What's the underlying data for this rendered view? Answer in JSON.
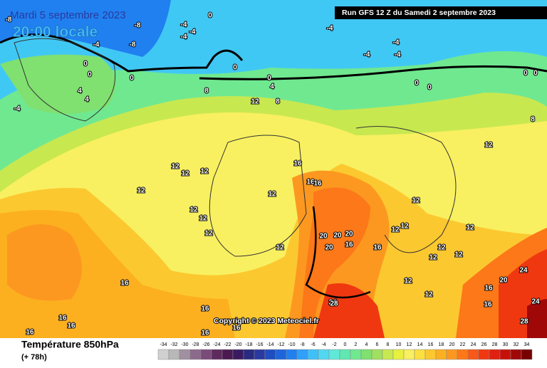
{
  "header": {
    "date": "Mardi 5 septembre 2023",
    "time": "20:00 locale",
    "run": "Run GFS 12 Z du Samedi 2 septembre 2023"
  },
  "copyright": "Copyright © 2023 Meteociel.fr",
  "legend": {
    "title": "Température 850hPa",
    "lead": "(+ 78h)",
    "ticks": [
      -34,
      -32,
      -30,
      -28,
      -26,
      -24,
      -22,
      -20,
      -18,
      -16,
      -14,
      -12,
      -10,
      -8,
      -6,
      -4,
      -2,
      0,
      2,
      4,
      6,
      8,
      10,
      12,
      14,
      16,
      18,
      20,
      22,
      24,
      26,
      28,
      30,
      32,
      34
    ],
    "colors": [
      "#d0d0d0",
      "#b8b8b8",
      "#a090a0",
      "#8c6a8c",
      "#7a4a7a",
      "#5e2a5e",
      "#4a1a50",
      "#3a1a60",
      "#2a2a80",
      "#2a3aa0",
      "#1e4ec0",
      "#1e64dc",
      "#2080f0",
      "#30a0f8",
      "#40c0f8",
      "#50d8f0",
      "#60e8d8",
      "#60e8b0",
      "#70e890",
      "#80e070",
      "#a0e060",
      "#c8e850",
      "#e8f040",
      "#f8f060",
      "#fce040",
      "#fcc830",
      "#fcb020",
      "#fc9820",
      "#fc7818",
      "#f85818",
      "#f03810",
      "#e02010",
      "#c81008",
      "#a00808",
      "#780000"
    ]
  },
  "map_labels": [
    -8,
    0,
    -8,
    -4,
    -4,
    -4,
    -8,
    -4,
    0,
    0,
    0,
    4,
    4,
    -4,
    0,
    0,
    4,
    8,
    12,
    8,
    -4,
    -4,
    -4,
    -4,
    0,
    0,
    0,
    0,
    8,
    12,
    12,
    12,
    12,
    12,
    16,
    16,
    16,
    12,
    12,
    12,
    12,
    12,
    20,
    20,
    20,
    20,
    16,
    12,
    16,
    12,
    12,
    12,
    12,
    12,
    12,
    24,
    20,
    24,
    16,
    16,
    12,
    12,
    16,
    16,
    16,
    16,
    24,
    28,
    16,
    16,
    16,
    28
  ]
}
